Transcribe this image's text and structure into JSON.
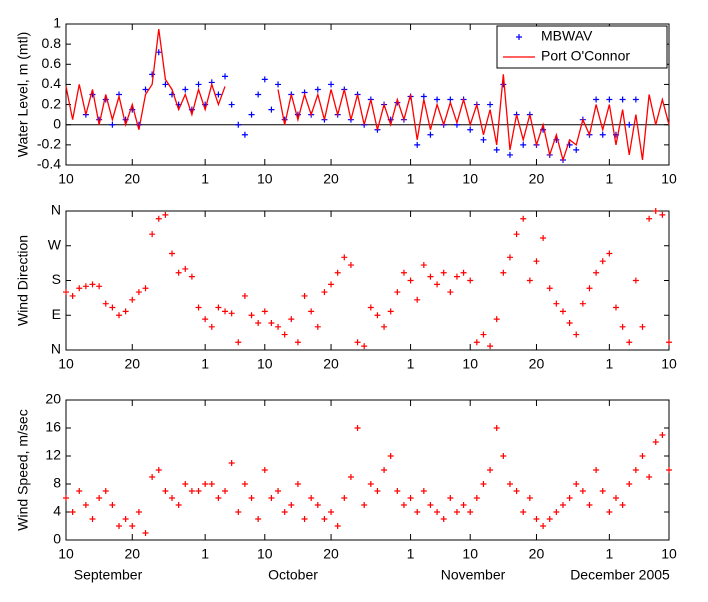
{
  "chart_data": [
    {
      "type": "line",
      "ylabel": "Water Level, m (mtl)",
      "ylim": [
        -0.4,
        1
      ],
      "yticks": [
        -0.4,
        -0.2,
        0,
        0.2,
        0.4,
        0.6,
        0.8,
        1
      ],
      "xlim": [
        0,
        91
      ],
      "xticks": [
        {
          "value": 0,
          "label": "10"
        },
        {
          "value": 10,
          "label": "20"
        },
        {
          "value": 21,
          "label": "1"
        },
        {
          "value": 30,
          "label": "10"
        },
        {
          "value": 40,
          "label": "20"
        },
        {
          "value": 52,
          "label": "1"
        },
        {
          "value": 61,
          "label": "10"
        },
        {
          "value": 71,
          "label": "20"
        },
        {
          "value": 82,
          "label": "1"
        },
        {
          "value": 91,
          "label": "10"
        }
      ],
      "zero_line": true,
      "legend": "upper right",
      "x": [
        0,
        1,
        2,
        3,
        4,
        5,
        6,
        7,
        8,
        9,
        10,
        11,
        12,
        13,
        14,
        15,
        16,
        17,
        18,
        19,
        20,
        21,
        22,
        23,
        24,
        25,
        26,
        27,
        28,
        29,
        30,
        31,
        32,
        33,
        34,
        35,
        36,
        37,
        38,
        39,
        40,
        41,
        42,
        43,
        44,
        45,
        46,
        47,
        48,
        49,
        50,
        51,
        52,
        53,
        54,
        55,
        56,
        57,
        58,
        59,
        60,
        61,
        62,
        63,
        64,
        65,
        66,
        67,
        68,
        69,
        70,
        71,
        72,
        73,
        74,
        75,
        76,
        77,
        78,
        79,
        80,
        81,
        82,
        83,
        84,
        85,
        86,
        87,
        88,
        89,
        90,
        91
      ],
      "series": [
        {
          "name": "MBWAV",
          "color": "#0000ff",
          "mode": "markers",
          "values": [
            null,
            null,
            null,
            0.1,
            0.3,
            0.05,
            0.25,
            0.0,
            0.3,
            0.05,
            0.15,
            0.0,
            0.35,
            0.5,
            0.72,
            0.4,
            0.3,
            0.2,
            0.35,
            0.15,
            0.4,
            0.2,
            0.42,
            0.3,
            0.48,
            0.2,
            0.0,
            -0.1,
            0.1,
            0.3,
            0.45,
            0.15,
            0.4,
            0.05,
            0.3,
            0.1,
            0.32,
            0.1,
            0.35,
            0.05,
            0.4,
            0.1,
            0.35,
            0.05,
            0.3,
            0.0,
            0.25,
            -0.05,
            0.2,
            0.05,
            0.22,
            0.05,
            0.28,
            -0.2,
            0.28,
            -0.1,
            0.25,
            0.0,
            0.25,
            0.0,
            0.25,
            -0.05,
            0.2,
            -0.15,
            0.2,
            -0.25,
            0.4,
            -0.3,
            0.1,
            -0.2,
            0.1,
            -0.2,
            -0.05,
            -0.3,
            -0.15,
            -0.35,
            -0.2,
            -0.25,
            0.05,
            -0.1,
            0.25,
            -0.1,
            0.25,
            -0.1,
            0.25,
            0.0,
            0.25,
            null,
            null,
            null,
            null,
            null
          ]
        },
        {
          "name": "Port O'Connor",
          "color": "#ff0000",
          "mode": "lines",
          "values": [
            0.38,
            0.05,
            0.4,
            0.1,
            0.35,
            0.0,
            0.3,
            0.05,
            0.28,
            0.0,
            0.2,
            -0.05,
            0.3,
            0.4,
            0.95,
            0.45,
            0.35,
            0.15,
            0.3,
            0.1,
            0.35,
            0.15,
            0.4,
            0.2,
            0.38,
            null,
            null,
            null,
            null,
            null,
            null,
            null,
            0.35,
            0.0,
            0.3,
            0.05,
            0.3,
            0.1,
            0.3,
            0.05,
            0.35,
            0.1,
            0.35,
            0.05,
            0.3,
            0.0,
            0.25,
            -0.05,
            0.2,
            0.0,
            0.25,
            0.05,
            0.3,
            -0.15,
            0.25,
            -0.05,
            0.2,
            0.0,
            0.22,
            0.02,
            0.25,
            0.0,
            0.2,
            -0.1,
            0.15,
            -0.2,
            0.5,
            -0.25,
            0.1,
            -0.15,
            0.1,
            -0.2,
            0.0,
            -0.3,
            -0.1,
            -0.35,
            -0.15,
            -0.2,
            0.05,
            -0.1,
            0.2,
            -0.05,
            0.2,
            -0.2,
            0.15,
            -0.3,
            0.1,
            -0.35,
            0.3,
            0.0,
            0.25,
            0.0
          ]
        }
      ]
    },
    {
      "type": "scatter",
      "ylabel": "Wind Direction",
      "ylim": [
        0,
        360
      ],
      "yticks": [
        {
          "value": 0,
          "label": "N"
        },
        {
          "value": 90,
          "label": "E"
        },
        {
          "value": 180,
          "label": "S"
        },
        {
          "value": 270,
          "label": "W"
        },
        {
          "value": 360,
          "label": "N"
        }
      ],
      "xlim": [
        0,
        91
      ],
      "xticks": [
        {
          "value": 0,
          "label": "10"
        },
        {
          "value": 10,
          "label": "20"
        },
        {
          "value": 21,
          "label": "1"
        },
        {
          "value": 30,
          "label": "10"
        },
        {
          "value": 40,
          "label": "20"
        },
        {
          "value": 52,
          "label": "1"
        },
        {
          "value": 61,
          "label": "10"
        },
        {
          "value": 71,
          "label": "20"
        },
        {
          "value": 82,
          "label": "1"
        },
        {
          "value": 91,
          "label": "10"
        }
      ],
      "color": "#ff0000",
      "x": [
        0,
        1,
        2,
        3,
        4,
        5,
        6,
        7,
        8,
        9,
        10,
        11,
        12,
        13,
        14,
        15,
        16,
        17,
        18,
        19,
        20,
        21,
        22,
        23,
        24,
        25,
        26,
        27,
        28,
        29,
        30,
        31,
        32,
        33,
        34,
        35,
        36,
        37,
        38,
        39,
        40,
        41,
        42,
        43,
        44,
        45,
        46,
        47,
        48,
        49,
        50,
        51,
        52,
        53,
        54,
        55,
        56,
        57,
        58,
        59,
        60,
        61,
        62,
        63,
        64,
        65,
        66,
        67,
        68,
        69,
        70,
        71,
        72,
        73,
        74,
        75,
        76,
        77,
        78,
        79,
        80,
        81,
        82,
        83,
        84,
        85,
        86,
        87,
        88,
        89,
        90,
        91
      ],
      "values": [
        150,
        140,
        160,
        165,
        170,
        165,
        120,
        110,
        90,
        100,
        130,
        150,
        160,
        300,
        340,
        350,
        250,
        200,
        210,
        190,
        110,
        80,
        60,
        110,
        100,
        95,
        20,
        140,
        90,
        70,
        100,
        70,
        60,
        40,
        80,
        20,
        140,
        100,
        60,
        150,
        170,
        200,
        240,
        220,
        20,
        10,
        110,
        90,
        60,
        100,
        150,
        200,
        180,
        130,
        220,
        190,
        170,
        200,
        150,
        190,
        200,
        180,
        20,
        40,
        10,
        80,
        200,
        240,
        300,
        340,
        180,
        230,
        290,
        160,
        120,
        100,
        70,
        40,
        120,
        160,
        200,
        230,
        250,
        110,
        60,
        20,
        180,
        60,
        340,
        360,
        350,
        20
      ]
    },
    {
      "type": "scatter",
      "ylabel": "Wind Speed, m/sec",
      "ylim": [
        0,
        20
      ],
      "yticks": [
        0,
        4,
        8,
        12,
        16,
        20
      ],
      "xlim": [
        0,
        91
      ],
      "xticks": [
        {
          "value": 0,
          "label": "10"
        },
        {
          "value": 10,
          "label": "20"
        },
        {
          "value": 21,
          "label": "1"
        },
        {
          "value": 30,
          "label": "10"
        },
        {
          "value": 40,
          "label": "20"
        },
        {
          "value": 52,
          "label": "1"
        },
        {
          "value": 61,
          "label": "10"
        },
        {
          "value": 71,
          "label": "20"
        },
        {
          "value": 82,
          "label": "1"
        },
        {
          "value": 91,
          "label": "10"
        }
      ],
      "color": "#ff0000",
      "month_labels": [
        "September",
        "October",
        "November",
        "December 2005"
      ],
      "x": [
        0,
        1,
        2,
        3,
        4,
        5,
        6,
        7,
        8,
        9,
        10,
        11,
        12,
        13,
        14,
        15,
        16,
        17,
        18,
        19,
        20,
        21,
        22,
        23,
        24,
        25,
        26,
        27,
        28,
        29,
        30,
        31,
        32,
        33,
        34,
        35,
        36,
        37,
        38,
        39,
        40,
        41,
        42,
        43,
        44,
        45,
        46,
        47,
        48,
        49,
        50,
        51,
        52,
        53,
        54,
        55,
        56,
        57,
        58,
        59,
        60,
        61,
        62,
        63,
        64,
        65,
        66,
        67,
        68,
        69,
        70,
        71,
        72,
        73,
        74,
        75,
        76,
        77,
        78,
        79,
        80,
        81,
        82,
        83,
        84,
        85,
        86,
        87,
        88,
        89,
        90,
        91
      ],
      "values": [
        6,
        4,
        7,
        5,
        3,
        6,
        7,
        5,
        2,
        3,
        2,
        4,
        1,
        9,
        10,
        7,
        6,
        5,
        8,
        7,
        7,
        8,
        8,
        6,
        7,
        11,
        4,
        8,
        6,
        3,
        10,
        6,
        7,
        4,
        5,
        8,
        3,
        6,
        5,
        3,
        4,
        2,
        6,
        9,
        16,
        5,
        8,
        7,
        10,
        12,
        7,
        5,
        6,
        4,
        7,
        5,
        4,
        3,
        6,
        4,
        5,
        4,
        6,
        8,
        10,
        16,
        12,
        8,
        7,
        4,
        6,
        3,
        2,
        3,
        4,
        5,
        6,
        8,
        7,
        5,
        10,
        7,
        4,
        6,
        5,
        8,
        10,
        12,
        9,
        14,
        15,
        10
      ]
    }
  ]
}
